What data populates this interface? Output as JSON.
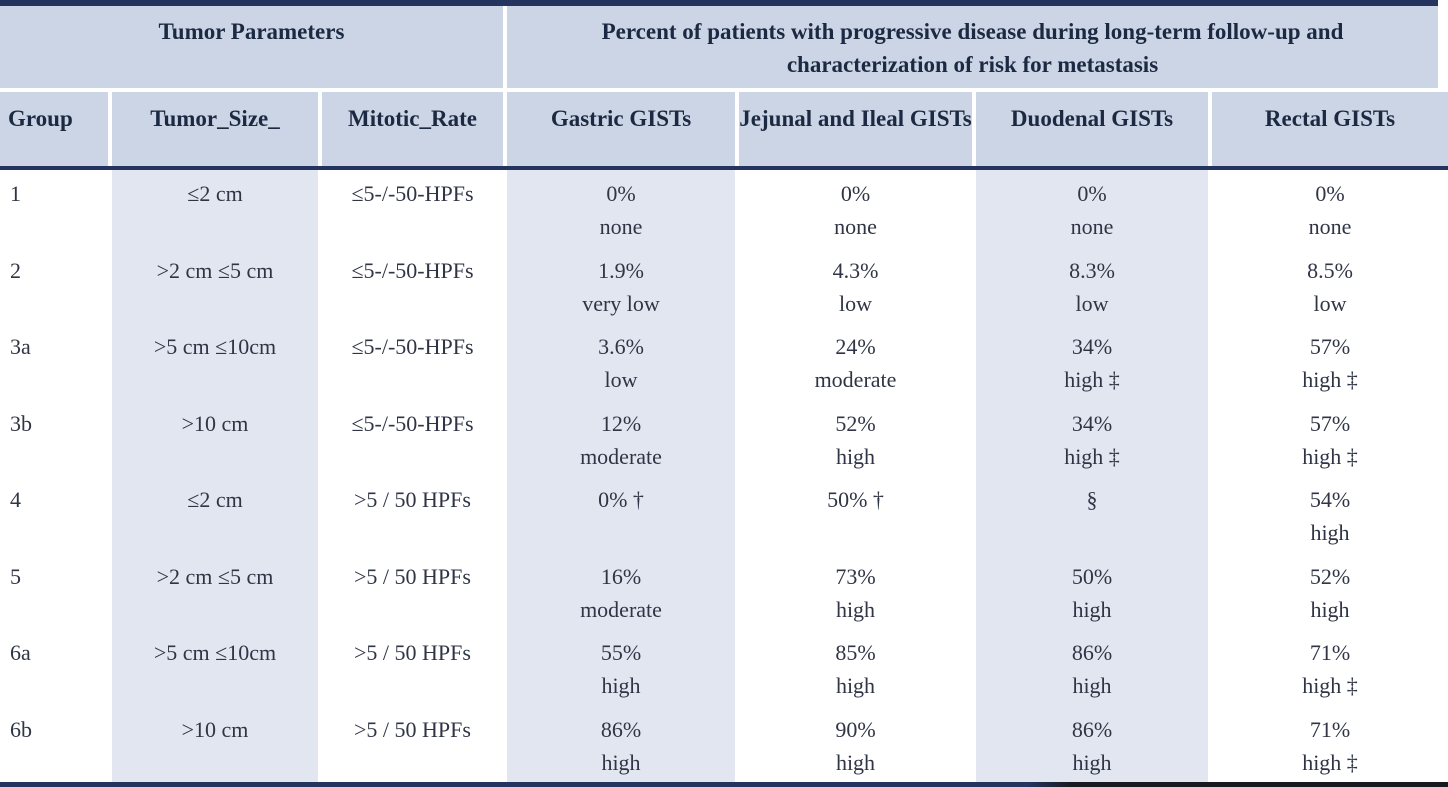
{
  "header": {
    "tumor_parameters": "Tumor Parameters",
    "percent_title": "Percent of patients with progressive disease during long-term follow-up and characterization of risk for metastasis",
    "columns": [
      "Group",
      "Tumor_Size_",
      "Mitotic_Rate",
      "Gastric GISTs",
      "Jejunal and Ileal GISTs",
      "Duodenal GISTs",
      "Rectal GISTs"
    ]
  },
  "rows": [
    {
      "group": "1",
      "size": "≤2 cm",
      "mitotic": "≤5-/-50-HPFs",
      "gastric": {
        "pct": "0%",
        "risk": "none"
      },
      "jejunal": {
        "pct": "0%",
        "risk": "none"
      },
      "duodenal": {
        "pct": "0%",
        "risk": "none"
      },
      "rectal": {
        "pct": "0%",
        "risk": "none"
      }
    },
    {
      "group": "2",
      "size": ">2 cm ≤5 cm",
      "mitotic": "≤5-/-50-HPFs",
      "gastric": {
        "pct": "1.9%",
        "risk": "very low"
      },
      "jejunal": {
        "pct": "4.3%",
        "risk": "low"
      },
      "duodenal": {
        "pct": "8.3%",
        "risk": "low"
      },
      "rectal": {
        "pct": "8.5%",
        "risk": "low"
      }
    },
    {
      "group": "3a",
      "size": ">5 cm ≤10cm",
      "mitotic": "≤5-/-50-HPFs",
      "gastric": {
        "pct": "3.6%",
        "risk": "low"
      },
      "jejunal": {
        "pct": "24%",
        "risk": "moderate"
      },
      "duodenal": {
        "pct": "34%",
        "risk": "high ‡"
      },
      "rectal": {
        "pct": "57%",
        "risk": "high ‡"
      }
    },
    {
      "group": "3b",
      "size": ">10 cm",
      "mitotic": "≤5-/-50-HPFs",
      "gastric": {
        "pct": "12%",
        "risk": "moderate"
      },
      "jejunal": {
        "pct": "52%",
        "risk": "high"
      },
      "duodenal": {
        "pct": "34%",
        "risk": "high ‡"
      },
      "rectal": {
        "pct": "57%",
        "risk": "high ‡"
      }
    },
    {
      "group": "4",
      "size": "≤2 cm",
      "mitotic": ">5 / 50 HPFs",
      "gastric": {
        "pct": "0% †",
        "risk": ""
      },
      "jejunal": {
        "pct": "50% †",
        "risk": ""
      },
      "duodenal": {
        "pct": "§",
        "risk": ""
      },
      "rectal": {
        "pct": "54%",
        "risk": "high"
      }
    },
    {
      "group": "5",
      "size": ">2 cm ≤5 cm",
      "mitotic": ">5 / 50 HPFs",
      "gastric": {
        "pct": "16%",
        "risk": "moderate"
      },
      "jejunal": {
        "pct": "73%",
        "risk": "high"
      },
      "duodenal": {
        "pct": "50%",
        "risk": "high"
      },
      "rectal": {
        "pct": "52%",
        "risk": "high"
      }
    },
    {
      "group": "6a",
      "size": ">5 cm ≤10cm",
      "mitotic": ">5 / 50 HPFs",
      "gastric": {
        "pct": "55%",
        "risk": "high"
      },
      "jejunal": {
        "pct": "85%",
        "risk": "high"
      },
      "duodenal": {
        "pct": "86%",
        "risk": "high"
      },
      "rectal": {
        "pct": "71%",
        "risk": "high ‡"
      }
    },
    {
      "group": "6b",
      "size": ">10 cm",
      "mitotic": ">5 / 50 HPFs",
      "gastric": {
        "pct": "86%",
        "risk": "high"
      },
      "jejunal": {
        "pct": "90%",
        "risk": "high"
      },
      "duodenal": {
        "pct": "86%",
        "risk": "high"
      },
      "rectal": {
        "pct": "71%",
        "risk": "high ‡"
      }
    }
  ],
  "colors": {
    "header_bg": "#ccd5e5",
    "shaded_bg": "#e2e6f0",
    "border": "#24345f",
    "header_text": "#1b2942",
    "body_text": "#2f3545",
    "bottom_border_right": "#191920"
  }
}
